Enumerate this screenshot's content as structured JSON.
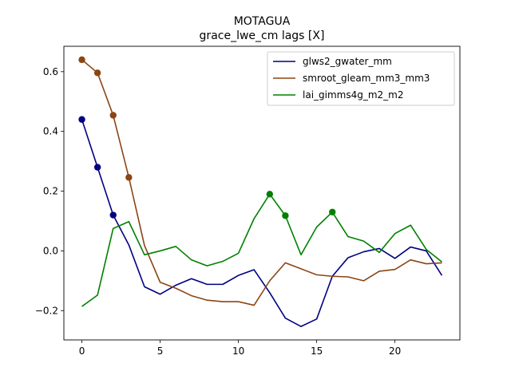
{
  "chart_data": {
    "type": "line",
    "title": "MOTAGUA",
    "subtitle": "grace_lwe_cm lags [X]",
    "xlabel": "",
    "ylabel": "",
    "xlim": [
      -1.15,
      24.15
    ],
    "ylim": [
      -0.298,
      0.685
    ],
    "xticks": [
      0,
      5,
      10,
      15,
      20
    ],
    "yticks": [
      -0.2,
      0.0,
      0.2,
      0.4,
      0.6
    ],
    "ytick_labels": [
      "−0.2",
      "0.0",
      "0.2",
      "0.4",
      "0.6"
    ],
    "legend_position": "top-right",
    "x": [
      0,
      1,
      2,
      3,
      4,
      5,
      6,
      7,
      8,
      9,
      10,
      11,
      12,
      13,
      14,
      15,
      16,
      17,
      18,
      19,
      20,
      21,
      22,
      23
    ],
    "series": [
      {
        "name": "glws2_gwater_mm",
        "color": "#000080",
        "values": [
          0.44,
          0.28,
          0.12,
          0.02,
          -0.12,
          -0.145,
          -0.115,
          -0.093,
          -0.112,
          -0.112,
          -0.082,
          -0.063,
          -0.14,
          -0.225,
          -0.253,
          -0.228,
          -0.085,
          -0.023,
          -0.003,
          0.008,
          -0.025,
          0.013,
          0.0,
          -0.082
        ],
        "markers": [
          0,
          1,
          2
        ]
      },
      {
        "name": "smroot_gleam_mm3_mm3",
        "color": "#8B4513",
        "values": [
          0.64,
          0.596,
          0.454,
          0.246,
          0.018,
          -0.105,
          -0.125,
          -0.15,
          -0.165,
          -0.17,
          -0.17,
          -0.182,
          -0.1,
          -0.04,
          -0.06,
          -0.08,
          -0.085,
          -0.087,
          -0.1,
          -0.068,
          -0.062,
          -0.03,
          -0.043,
          -0.04
        ],
        "markers": [
          0,
          1,
          2,
          3
        ]
      },
      {
        "name": "lai_gimms4g_m2_m2",
        "color": "#008000",
        "values": [
          -0.186,
          -0.148,
          0.075,
          0.098,
          -0.013,
          0.0,
          0.015,
          -0.03,
          -0.05,
          -0.035,
          -0.008,
          0.108,
          0.19,
          0.118,
          -0.013,
          0.08,
          0.13,
          0.048,
          0.033,
          -0.005,
          0.058,
          0.086,
          0.005,
          -0.037
        ],
        "markers": [
          12,
          13,
          16
        ]
      }
    ]
  }
}
